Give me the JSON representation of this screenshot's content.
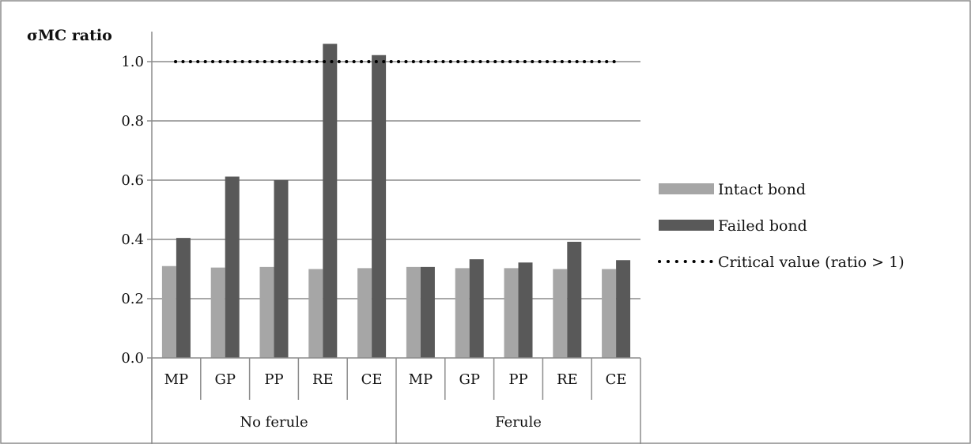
{
  "chart_data": {
    "type": "bar",
    "title": "",
    "ylabel": "σMC ratio",
    "xlabel": "",
    "ylim": [
      0,
      1.0
    ],
    "yticks": [
      "0.0",
      "0.2",
      "0.4",
      "0.6",
      "0.8",
      "1.0"
    ],
    "grid": true,
    "legend_position": "right",
    "groups": [
      {
        "label": "No ferule",
        "categories": [
          "MP",
          "GP",
          "PP",
          "RE",
          "CE"
        ]
      },
      {
        "label": "Ferule",
        "categories": [
          "MP",
          "GP",
          "PP",
          "RE",
          "CE"
        ]
      }
    ],
    "categories": [
      "MP",
      "GP",
      "PP",
      "RE",
      "CE",
      "MP",
      "GP",
      "PP",
      "RE",
      "CE"
    ],
    "series": [
      {
        "name": "Intact bond",
        "color": "#a6a6a6",
        "values": [
          0.31,
          0.305,
          0.307,
          0.3,
          0.303,
          0.307,
          0.303,
          0.303,
          0.3,
          0.3
        ]
      },
      {
        "name": "Failed bond",
        "color": "#595959",
        "values": [
          0.405,
          0.612,
          0.6,
          1.06,
          1.022,
          0.307,
          0.333,
          0.322,
          0.392,
          0.33
        ]
      }
    ],
    "reference_line": {
      "name": "Critical value (ratio > 1)",
      "value": 1.0,
      "style": "dotted",
      "color": "#000000"
    }
  }
}
